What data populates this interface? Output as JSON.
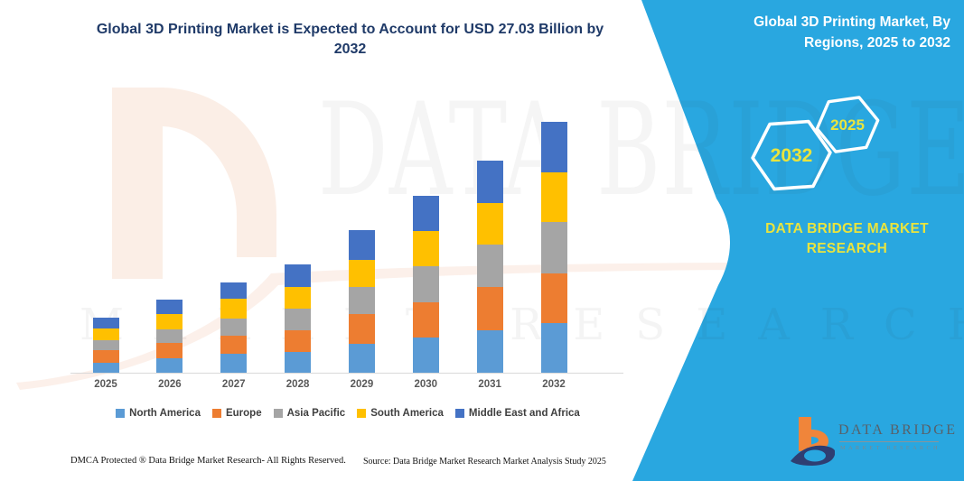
{
  "chart_data": {
    "type": "bar",
    "stacked": true,
    "title": "Global 3D Printing Market is Expected to Account for USD 27.03 Billion by 2032",
    "title_lines": [
      "Global 3D Printing Market is Expected to Account for USD 27.03 Billion by",
      "2032"
    ],
    "unit": "USD Billion",
    "categories": [
      "2025",
      "2026",
      "2027",
      "2028",
      "2029",
      "2030",
      "2031",
      "2032"
    ],
    "series": [
      {
        "name": "North America",
        "color": "#5B9BD5",
        "values": [
          1.1,
          1.6,
          2.05,
          2.25,
          3.1,
          3.8,
          4.6,
          5.4
        ]
      },
      {
        "name": "Europe",
        "color": "#ED7D31",
        "values": [
          1.35,
          1.65,
          1.95,
          2.35,
          3.2,
          3.8,
          4.6,
          5.3
        ]
      },
      {
        "name": "Asia Pacific",
        "color": "#A5A5A5",
        "values": [
          1.1,
          1.4,
          1.85,
          2.35,
          2.9,
          3.9,
          4.6,
          5.5
        ]
      },
      {
        "name": "South America",
        "color": "#FFC000",
        "values": [
          1.2,
          1.65,
          2.15,
          2.25,
          3.0,
          3.8,
          4.5,
          5.4
        ]
      },
      {
        "name": "Middle East and Africa",
        "color": "#4472C4",
        "values": [
          1.2,
          1.55,
          1.75,
          2.45,
          3.2,
          3.8,
          4.6,
          5.43
        ]
      }
    ],
    "totals": [
      5.95,
      7.85,
      9.75,
      11.65,
      15.4,
      19.1,
      22.9,
      27.03
    ],
    "highlight_value": "USD 27.03 Billion by 2032",
    "ylim": [
      0,
      28
    ],
    "gridlines": false,
    "legend_position": "bottom"
  },
  "side_panel": {
    "heading_lines": [
      "Global 3D Printing Market, By",
      "Regions, 2025 to 2032"
    ],
    "hexagons": [
      {
        "label": "2032"
      },
      {
        "label": "2025"
      }
    ],
    "brand_lines": [
      "DATA BRIDGE MARKET",
      "RESEARCH"
    ],
    "colors": {
      "panel_blue": "#29A7E0",
      "hex_text_yellow": "#E9E43E",
      "title_navy": "#1F3A68"
    }
  },
  "watermark": {
    "line1": "DATA BRIDGE",
    "line2": "MARKET RESEARCH"
  },
  "logo": {
    "name": "DATA BRIDGE",
    "subtitle": "MARKET RESEARCH"
  },
  "footer": {
    "left": "DMCA Protected ® Data Bridge Market Research-  All Rights Reserved.",
    "source": "Source: Data Bridge Market Research  Market Analysis Study 2025"
  }
}
